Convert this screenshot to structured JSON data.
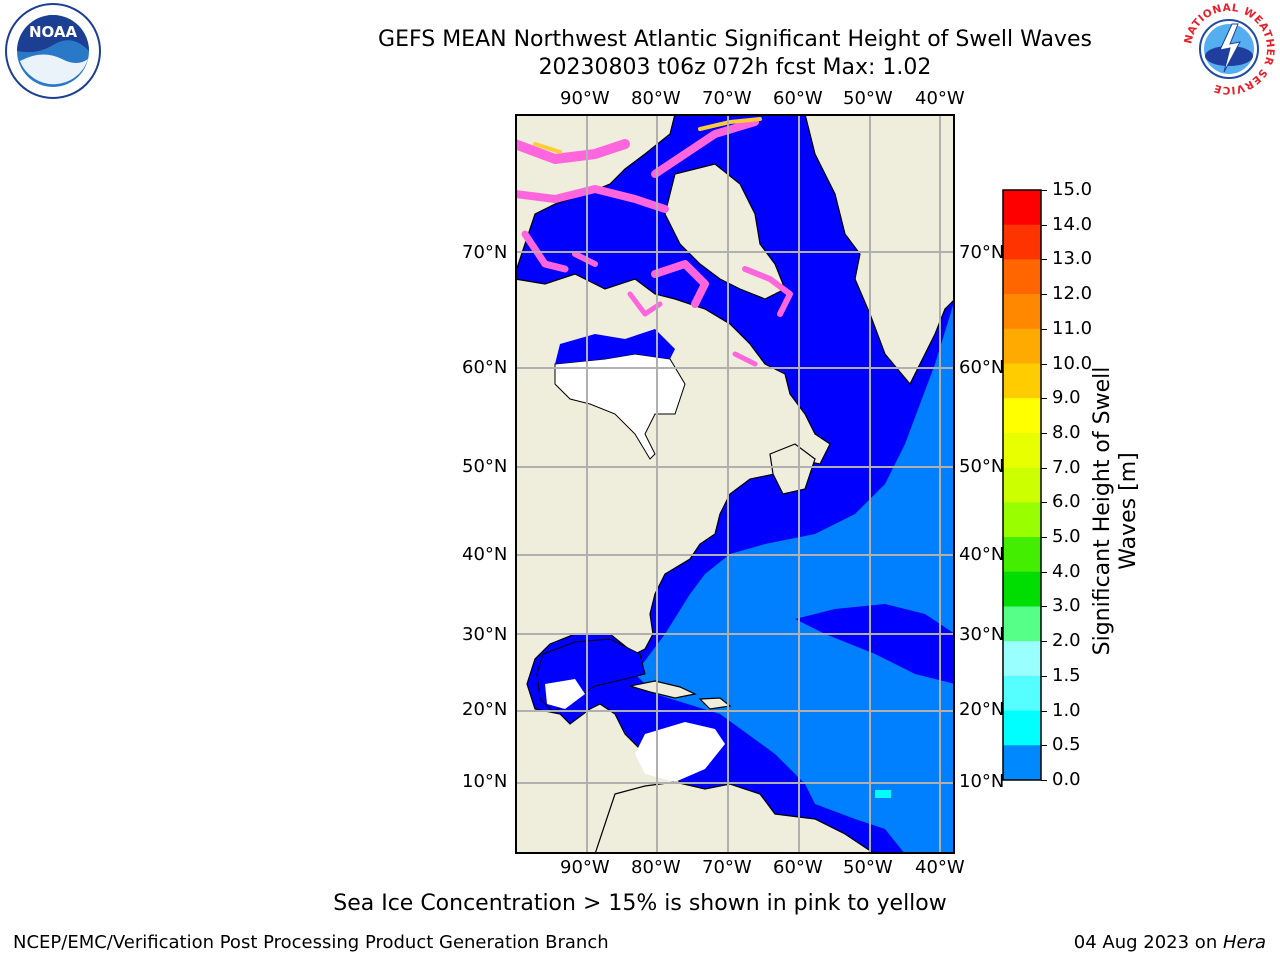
{
  "title": {
    "line1": "GEFS MEAN Northwest Atlantic Significant Height of Swell Waves",
    "line2": "20230803 t06z 072h fcst   Max: 1.02"
  },
  "map": {
    "lon_labels": [
      "90°W",
      "80°W",
      "70°W",
      "60°W",
      "50°W",
      "40°W"
    ],
    "lat_labels": [
      "70°N",
      "60°N",
      "50°N",
      "40°N",
      "30°N",
      "20°N",
      "10°N"
    ],
    "colors": {
      "land": "#efeddc",
      "coast": "#000000",
      "grid": "#b0b0b0",
      "swell_0_0_5": "#0000ff",
      "swell_0_5_1_0": "#0080ff",
      "ice": "#ff66dd",
      "ice_high": "#ffcc33"
    }
  },
  "colorbar": {
    "title_line1": "Significant Height of Swell",
    "title_line2": "Waves [m]",
    "ticks": [
      "15.0",
      "14.0",
      "13.0",
      "12.0",
      "11.0",
      "10.0",
      "9.0",
      "8.0",
      "7.0",
      "6.0",
      "5.0",
      "4.0",
      "3.0",
      "2.0",
      "1.5",
      "1.0",
      "0.5",
      "0.0"
    ],
    "colors": [
      "#ff0000",
      "#ff3300",
      "#ff6600",
      "#ff8800",
      "#ffaa00",
      "#ffcc00",
      "#ffff00",
      "#e8ff00",
      "#ccff00",
      "#99ff00",
      "#44ee00",
      "#00dd00",
      "#55ff88",
      "#99ffff",
      "#55ffff",
      "#00ffff",
      "#0088ff",
      "#0000ff"
    ]
  },
  "caption": "Sea Ice Concentration > 15% is shown in pink to yellow",
  "footer": {
    "credit": "NCEP/EMC/Verification Post Processing Product Generation Branch",
    "date": "04 Aug 2023 on ",
    "machine": "Hera"
  },
  "logos": {
    "left_text": "NOAA",
    "right_text": "NATIONAL WEATHER SERVICE"
  }
}
